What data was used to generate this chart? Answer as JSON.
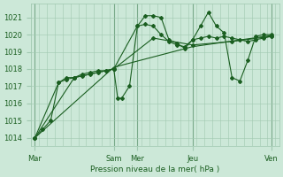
{
  "bg_color": "#cce8d8",
  "grid_color": "#a0c8b0",
  "line_color": "#1a5e20",
  "marker_color": "#1a5e20",
  "xlabel": "Pression niveau de la mer( hPa )",
  "xlabel_color": "#1a5e20",
  "tick_color": "#1a5e20",
  "ylim": [
    1013.5,
    1021.8
  ],
  "yticks": [
    1014,
    1015,
    1016,
    1017,
    1018,
    1019,
    1020,
    1021
  ],
  "x_day_labels": [
    "Mar",
    "Sam",
    "Mer",
    "Jeu",
    "Ven"
  ],
  "x_day_positions": [
    0,
    10,
    13,
    20,
    30
  ],
  "xlim": [
    -0.5,
    31
  ],
  "line1_x": [
    0,
    1,
    2,
    3,
    4,
    5,
    6,
    7,
    8,
    9,
    10,
    10.5,
    11,
    12,
    13,
    14,
    15,
    16,
    17,
    18,
    19,
    20,
    21,
    22,
    23,
    24,
    25,
    26,
    27,
    28,
    29,
    30
  ],
  "line1_y": [
    1014.0,
    1014.5,
    1015.0,
    1017.2,
    1017.5,
    1017.5,
    1017.7,
    1017.8,
    1017.9,
    1017.9,
    1018.0,
    1016.3,
    1016.3,
    1017.0,
    1020.5,
    1021.1,
    1021.1,
    1021.0,
    1019.7,
    1019.5,
    1019.2,
    1019.7,
    1020.5,
    1021.3,
    1020.5,
    1020.1,
    1017.5,
    1017.3,
    1018.5,
    1019.9,
    1020.0,
    1020.0
  ],
  "line2_x": [
    0,
    3,
    4,
    5,
    6,
    7,
    8,
    9,
    10,
    13,
    14,
    15,
    16,
    17,
    18,
    19,
    20,
    21,
    22,
    23,
    24,
    25,
    26,
    27,
    28,
    29,
    30
  ],
  "line2_y": [
    1014.0,
    1017.2,
    1017.4,
    1017.5,
    1017.6,
    1017.7,
    1017.8,
    1017.9,
    1018.0,
    1020.5,
    1020.6,
    1020.5,
    1020.0,
    1019.6,
    1019.4,
    1019.3,
    1019.7,
    1019.8,
    1019.9,
    1019.8,
    1019.9,
    1019.8,
    1019.7,
    1019.6,
    1019.7,
    1019.8,
    1019.9
  ],
  "line3_x": [
    0,
    5,
    10,
    15,
    20,
    25,
    30
  ],
  "line3_y": [
    1014.0,
    1017.5,
    1018.0,
    1019.8,
    1019.4,
    1019.6,
    1019.9
  ],
  "line4_x": [
    0,
    10,
    20,
    30
  ],
  "line4_y": [
    1014.0,
    1018.1,
    1019.3,
    1019.95
  ],
  "vlines": [
    0,
    10,
    13,
    20,
    30
  ]
}
